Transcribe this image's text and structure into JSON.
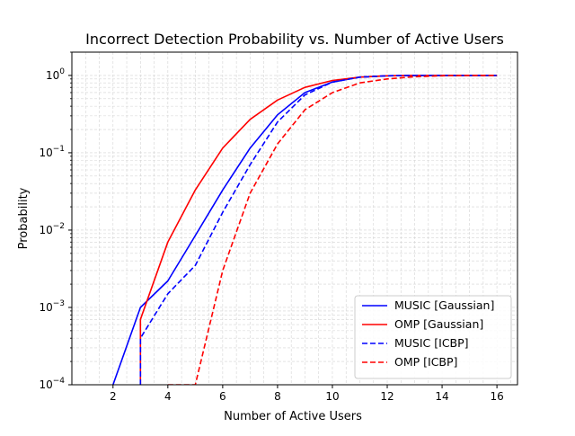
{
  "chart_data": {
    "type": "line",
    "title": "Incorrect Detection Probability vs. Number of Active Users",
    "xlabel": "Number of Active Users",
    "ylabel": "Probability",
    "xlim": [
      0.5,
      16.75
    ],
    "ylim": [
      0.0001,
      2
    ],
    "yscale": "log",
    "grid": true,
    "legend_position": "lower-right",
    "x_ticks": [
      2,
      4,
      6,
      8,
      10,
      12,
      14,
      16
    ],
    "x_tick_labels": [
      "2",
      "4",
      "6",
      "8",
      "10",
      "12",
      "14",
      "16"
    ],
    "y_ticks": [
      0.0001,
      0.001,
      0.01,
      0.1,
      1
    ],
    "y_tick_labels": [
      {
        "base": "10",
        "exp": "−4"
      },
      {
        "base": "10",
        "exp": "−3"
      },
      {
        "base": "10",
        "exp": "−2"
      },
      {
        "base": "10",
        "exp": "−1"
      },
      {
        "base": "10",
        "exp": "0"
      }
    ],
    "series": [
      {
        "name": "MUSIC [Gaussian]",
        "color": "#0000ff",
        "dash": "solid",
        "x": [
          2,
          3,
          4,
          5,
          6,
          7,
          8,
          9,
          10,
          11,
          12,
          13,
          14,
          15,
          16
        ],
        "y": [
          0.0001,
          0.001,
          0.0022,
          0.0085,
          0.033,
          0.115,
          0.31,
          0.6,
          0.82,
          0.95,
          0.99,
          1.0,
          1.0,
          1.0,
          1.0
        ]
      },
      {
        "name": "OMP [Gaussian]",
        "color": "#ff0000",
        "dash": "solid",
        "x": [
          3,
          3,
          4,
          5,
          6,
          7,
          8,
          9,
          10,
          11,
          12,
          13,
          14,
          15,
          16
        ],
        "y": [
          0.0001,
          0.0007,
          0.007,
          0.033,
          0.115,
          0.27,
          0.48,
          0.7,
          0.86,
          0.95,
          0.99,
          1.0,
          1.0,
          1.0,
          1.0
        ]
      },
      {
        "name": "MUSIC [ICBP]",
        "color": "#0000ff",
        "dash": "dashed",
        "x": [
          3,
          3,
          4,
          5,
          6,
          7,
          8,
          9,
          10,
          11,
          12,
          13,
          14,
          15,
          16
        ],
        "y": [
          0.0001,
          0.0004,
          0.0015,
          0.0035,
          0.017,
          0.07,
          0.25,
          0.56,
          0.82,
          0.95,
          0.99,
          1.0,
          1.0,
          1.0,
          1.0
        ]
      },
      {
        "name": "OMP [ICBP]",
        "color": "#ff0000",
        "dash": "dashed",
        "x": [
          4,
          5,
          6,
          7,
          8,
          9,
          10,
          11,
          12,
          13,
          14,
          15,
          16
        ],
        "y": [
          0.0001,
          0.0001,
          0.003,
          0.03,
          0.13,
          0.36,
          0.6,
          0.8,
          0.9,
          0.96,
          0.99,
          1.0,
          1.0
        ]
      }
    ]
  }
}
